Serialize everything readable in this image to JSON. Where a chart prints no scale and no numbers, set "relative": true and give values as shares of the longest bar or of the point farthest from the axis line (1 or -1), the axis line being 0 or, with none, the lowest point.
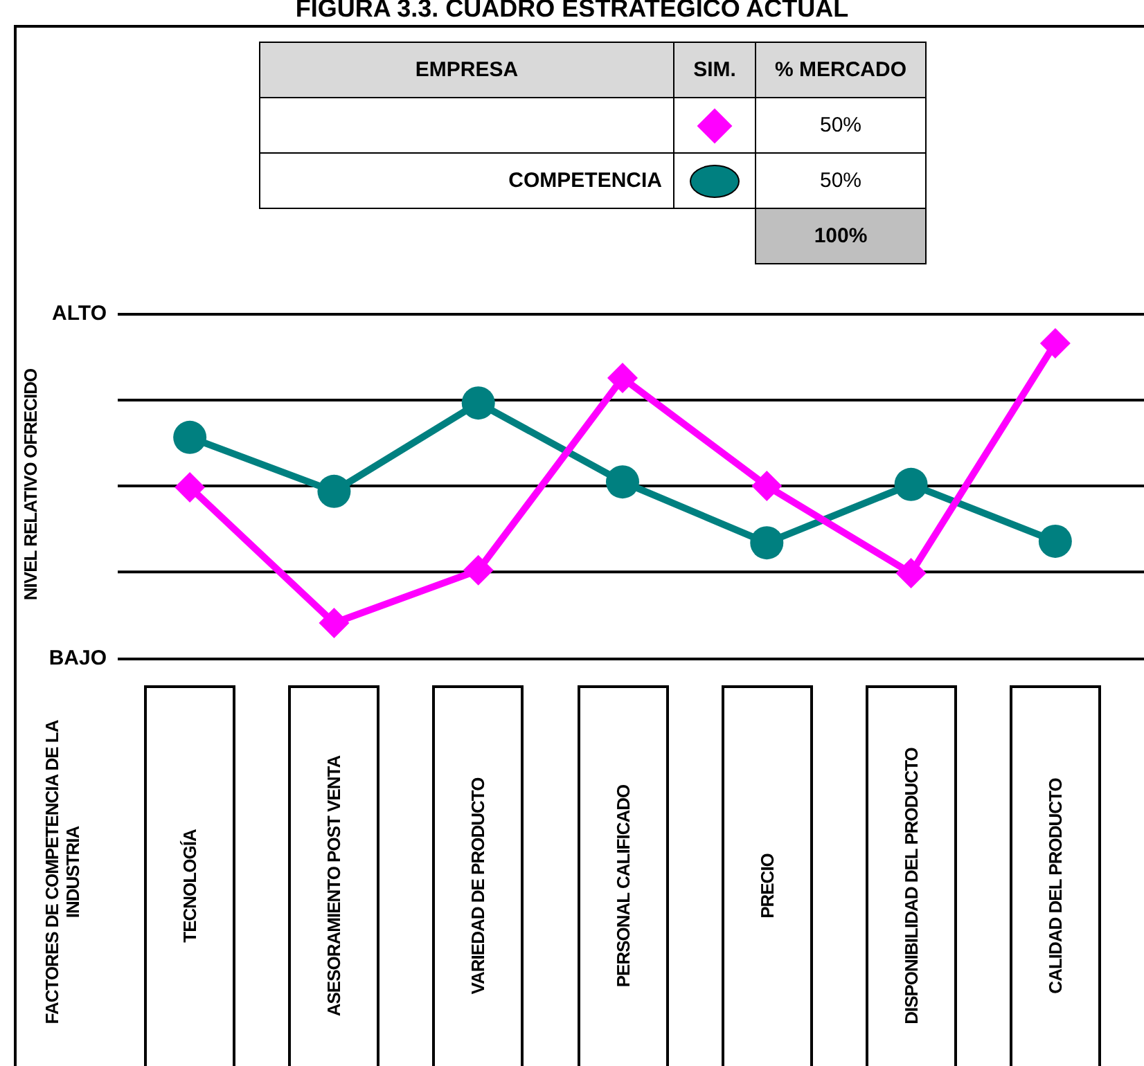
{
  "chart_data": {
    "type": "line",
    "title": "FIGURA 3.3. CUADRO ESTRATEGICO ACTUAL",
    "ylabel": "NIVEL RELATIVO OFRECIDO",
    "relative": true,
    "legend": "top",
    "line_style": "solid",
    "categories": [
      "TECNOLOGÍA",
      "ASESORAMIENTO POST VENTA",
      "VARIEDAD DE PRODUCTO",
      "PERSONAL CALIFICADO",
      "PRECIO",
      "DISPONIBILIDAD DEL PRODUCTO",
      "CALIDAD DEL PRODUCTO"
    ],
    "series": [
      {
        "color": "#ff00ff",
        "marker": "diamond",
        "values": [
          0.544,
          0.114,
          0.281,
          0.89,
          0.548,
          0.272,
          1
        ]
      },
      {
        "name": "COMPETENCIA",
        "color": "#008080",
        "marker": "circle",
        "values": [
          0.702,
          0.531,
          0.811,
          0.561,
          0.368,
          0.553,
          0.373
        ]
      }
    ],
    "ref_lines": [
      {
        "axis": "y",
        "value": 1.092,
        "label": "ALTO",
        "color": "#000000"
      },
      {
        "axis": "y",
        "value": 0.82,
        "label": null,
        "color": "#000000"
      },
      {
        "axis": "y",
        "value": 0.548,
        "label": null,
        "color": "#000000"
      },
      {
        "axis": "y",
        "value": 0.276,
        "label": null,
        "color": "#000000"
      },
      {
        "axis": "y",
        "value": 0,
        "label": "BAJO",
        "color": "#000000"
      }
    ],
    "annotations": [
      "EMPRESA",
      "SIM.",
      "% MERCADO",
      "50%",
      "50%",
      "100%",
      "FACTORES DE COMPETENCIA DE LA INDUSTRIA"
    ]
  }
}
